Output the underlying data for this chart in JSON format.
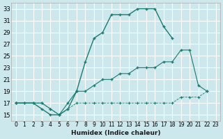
{
  "xlabel": "Humidex (Indice chaleur)",
  "ylabel": "",
  "bg_color": "#cce8ec",
  "grid_color": "#ffffff",
  "line_color": "#1a7a6e",
  "xlim": [
    -0.5,
    23.5
  ],
  "ylim": [
    14,
    34
  ],
  "xticks": [
    0,
    1,
    2,
    3,
    4,
    5,
    6,
    7,
    8,
    9,
    10,
    11,
    12,
    13,
    14,
    15,
    16,
    17,
    18,
    19,
    20,
    21,
    22,
    23
  ],
  "yticks": [
    15,
    17,
    19,
    21,
    23,
    25,
    27,
    29,
    31,
    33
  ],
  "line1_x": [
    0,
    1,
    2,
    3,
    4,
    5,
    6,
    7,
    8,
    9,
    10,
    11,
    12,
    13,
    14,
    15,
    16,
    17,
    18
  ],
  "line1_y": [
    17,
    17,
    17,
    16,
    15,
    15,
    16,
    19,
    24,
    28,
    29,
    32,
    32,
    32,
    33,
    33,
    33,
    30,
    28
  ],
  "line2_x": [
    0,
    3,
    4,
    5,
    6,
    7,
    8,
    9,
    10,
    11,
    12,
    13,
    14,
    15,
    16,
    17,
    18,
    19,
    20,
    21,
    22
  ],
  "line2_y": [
    17,
    17,
    16,
    15,
    17,
    19,
    19,
    20,
    21,
    21,
    22,
    22,
    23,
    23,
    23,
    24,
    24,
    26,
    26,
    20,
    19
  ],
  "line3_x": [
    0,
    1,
    2,
    3,
    4,
    5,
    6,
    7,
    8,
    9,
    10,
    11,
    12,
    13,
    14,
    15,
    16,
    17,
    18,
    19,
    20,
    21,
    22
  ],
  "line3_y": [
    17,
    17,
    17,
    17,
    16,
    15,
    16,
    17,
    17,
    17,
    17,
    17,
    17,
    17,
    17,
    17,
    17,
    17,
    17,
    18,
    18,
    18,
    19
  ]
}
